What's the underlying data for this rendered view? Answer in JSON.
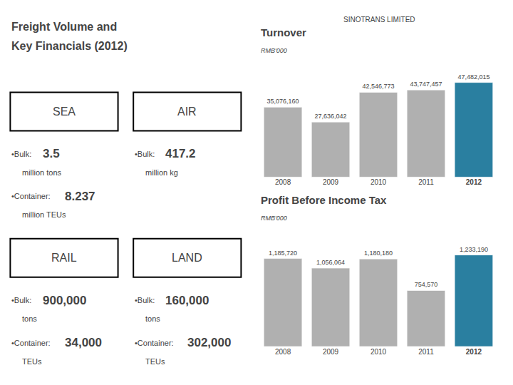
{
  "title": [
    "Freight Volume and",
    "Key Financials (2012)"
  ],
  "subtitle": "SINOTRANS LIMITED",
  "annotations": [
    {
      "text": "SEA",
      "items": [
        {
          "text": "•Bulk:",
          "value": 3.5,
          "unit": "million tons"
        },
        {
          "text": "•Container:",
          "value": 8.237,
          "unit": "million TEUs"
        }
      ]
    },
    {
      "text": "AIR",
      "items": [
        {
          "text": "•Bulk:",
          "value": 417.2,
          "unit": "million kg"
        }
      ]
    },
    {
      "text": "RAIL",
      "items": [
        {
          "text": "•Bulk:",
          "value": 900000,
          "label": "900,000",
          "unit": "tons"
        },
        {
          "text": "•Container:",
          "value": 34000,
          "label": "34,000",
          "unit": "TEUs"
        }
      ]
    },
    {
      "text": "LAND",
      "items": [
        {
          "text": "•Bulk:",
          "value": 160000,
          "label": "160,000",
          "unit": "tons"
        },
        {
          "text": "•Container:",
          "value": 302000,
          "label": "302,000",
          "unit": "TEUs"
        }
      ]
    }
  ],
  "chart_data": [
    {
      "type": "bar",
      "title": "Turnover",
      "subtitle": "RMB'000",
      "categories": [
        "2008",
        "2009",
        "2010",
        "2011",
        "2012"
      ],
      "values": [
        35076160,
        27636042,
        42546773,
        43747457,
        47482015
      ],
      "value_labels": [
        "35,076,160",
        "27,636,042",
        "42,546,773",
        "43,747,457",
        "47,482,015"
      ],
      "colors": [
        "#b0b0b0",
        "#b0b0b0",
        "#b0b0b0",
        "#b0b0b0",
        "#2a7fa0"
      ],
      "ylim": [
        0,
        56028777.7
      ],
      "data_labels": true,
      "tick_labels": "x",
      "grid": false
    },
    {
      "type": "bar",
      "title": "Profit Before Income Tax",
      "subtitle": "RMB'000",
      "categories": [
        "2008",
        "2009",
        "2010",
        "2011",
        "2012"
      ],
      "values": [
        1185720,
        1056064,
        1180180,
        754570,
        1233190
      ],
      "value_labels": [
        "1,185,720",
        "1,056,064",
        "1,180,180",
        "754,570",
        "1,233,190"
      ],
      "colors": [
        "#b0b0b0",
        "#b0b0b0",
        "#b0b0b0",
        "#b0b0b0",
        "#2a7fa0"
      ],
      "ylim": [
        0,
        1504491.8
      ],
      "data_labels": true,
      "tick_labels": "x",
      "grid": false
    }
  ]
}
